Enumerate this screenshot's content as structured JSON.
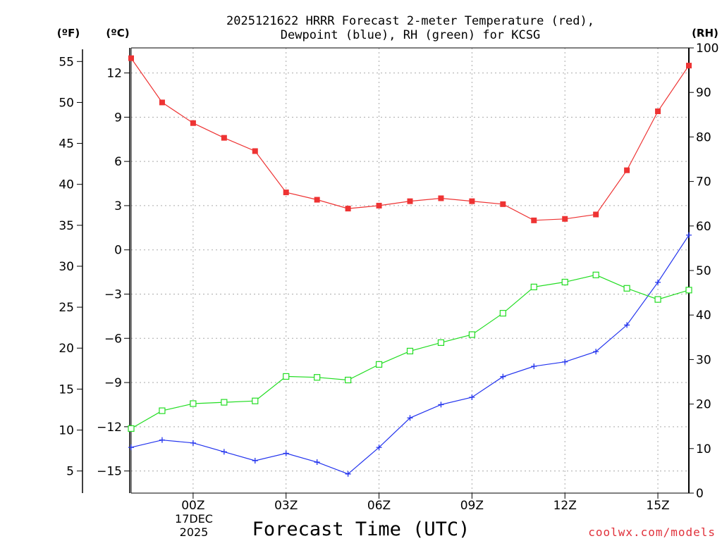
{
  "colors": {
    "temperature": "#ee3333",
    "dewpoint": "#2233ee",
    "rh": "#22dd22",
    "credit": "#e0303a"
  },
  "chart_data": {
    "type": "line",
    "title_line1": "2025121622 HRRR Forecast 2-meter Temperature (red),",
    "title_line2": "Dewpoint (blue), RH (green) for KCSG",
    "xlabel": "Forecast Time (UTC)",
    "credit": "coolwx.com/models",
    "unit_f": "(ºF)",
    "unit_c": "(ºC)",
    "unit_rh": "(RH)",
    "date_line1": "17DEC",
    "date_line2": "2025",
    "x_hours": [
      -2,
      -1,
      0,
      1,
      2,
      3,
      4,
      5,
      6,
      7,
      8,
      9,
      10,
      11,
      12,
      13,
      14,
      15,
      16
    ],
    "x_range": [
      -2,
      16
    ],
    "x_ticks": [
      {
        "hour": 0,
        "label": "00Z"
      },
      {
        "hour": 3,
        "label": "03Z"
      },
      {
        "hour": 6,
        "label": "06Z"
      },
      {
        "hour": 9,
        "label": "09Z"
      },
      {
        "hour": 12,
        "label": "12Z"
      },
      {
        "hour": 15,
        "label": "15Z"
      }
    ],
    "celsius_range": [
      -16.5,
      13.7
    ],
    "celsius_ticks": [
      {
        "v": 12,
        "label": "12"
      },
      {
        "v": 9,
        "label": "9"
      },
      {
        "v": 6,
        "label": "6"
      },
      {
        "v": 3,
        "label": "3"
      },
      {
        "v": 0,
        "label": "0"
      },
      {
        "v": -3,
        "label": "−3"
      },
      {
        "v": -6,
        "label": "−6"
      },
      {
        "v": -9,
        "label": "−9"
      },
      {
        "v": -12,
        "label": "−12"
      },
      {
        "v": -15,
        "label": "−15"
      }
    ],
    "fahrenheit_ticks": [
      {
        "v": 55,
        "label": "55"
      },
      {
        "v": 50,
        "label": "50"
      },
      {
        "v": 45,
        "label": "45"
      },
      {
        "v": 40,
        "label": "40"
      },
      {
        "v": 35,
        "label": "35"
      },
      {
        "v": 30,
        "label": "30"
      },
      {
        "v": 25,
        "label": "25"
      },
      {
        "v": 20,
        "label": "20"
      },
      {
        "v": 15,
        "label": "15"
      },
      {
        "v": 10,
        "label": "10"
      },
      {
        "v": 5,
        "label": "5"
      }
    ],
    "rh_range": [
      0,
      100
    ],
    "rh_ticks": [
      {
        "v": 100,
        "label": "100"
      },
      {
        "v": 90,
        "label": "90"
      },
      {
        "v": 80,
        "label": "80"
      },
      {
        "v": 70,
        "label": "70"
      },
      {
        "v": 60,
        "label": "60"
      },
      {
        "v": 50,
        "label": "50"
      },
      {
        "v": 40,
        "label": "40"
      },
      {
        "v": 30,
        "label": "30"
      },
      {
        "v": 20,
        "label": "20"
      },
      {
        "v": 10,
        "label": "10"
      },
      {
        "v": 0,
        "label": "0"
      }
    ],
    "series": [
      {
        "name": "Temperature",
        "axis": "celsius",
        "color": "#ee3333",
        "marker": "filled-square",
        "values": [
          13.0,
          10.0,
          8.6,
          7.6,
          6.7,
          3.9,
          3.4,
          2.8,
          3.0,
          3.3,
          3.5,
          3.3,
          3.1,
          2.0,
          2.1,
          2.4,
          5.4,
          9.4,
          12.5
        ]
      },
      {
        "name": "Dewpoint",
        "axis": "celsius",
        "color": "#2233ee",
        "marker": "plus",
        "values": [
          -13.4,
          -12.9,
          -13.1,
          -13.7,
          -14.3,
          -13.8,
          -14.4,
          -15.2,
          -13.4,
          -11.4,
          -10.5,
          -10.0,
          -8.6,
          -7.9,
          -7.6,
          -6.9,
          -5.1,
          -2.2,
          1.0
        ]
      },
      {
        "name": "RH",
        "axis": "rh",
        "color": "#22dd22",
        "marker": "open-square",
        "values": [
          14.5,
          18.5,
          20.1,
          20.4,
          20.7,
          26.2,
          26.0,
          25.4,
          28.9,
          31.9,
          33.8,
          35.6,
          40.4,
          46.3,
          47.4,
          49.0,
          46.0,
          43.5,
          45.6
        ]
      }
    ]
  }
}
